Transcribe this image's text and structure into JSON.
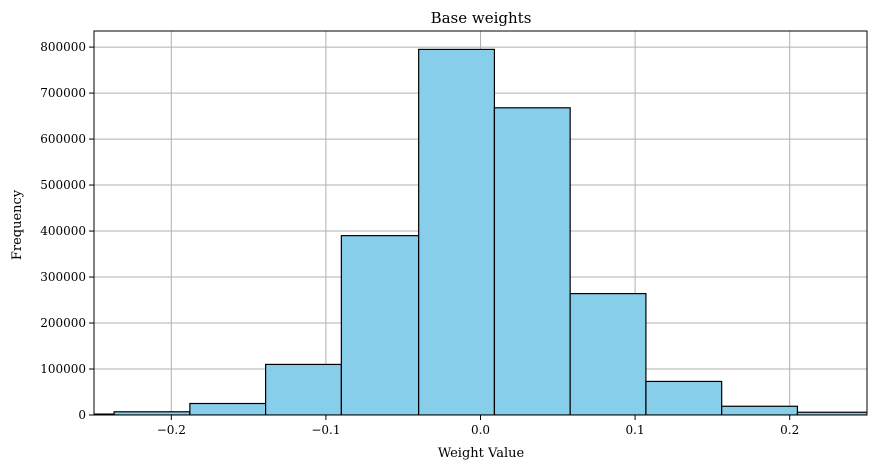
{
  "chart_data": {
    "type": "histogram",
    "title": "Base weights",
    "xlabel": "Weight Value",
    "ylabel": "Frequency",
    "xlim": [
      -0.25,
      0.25
    ],
    "ylim": [
      0,
      835000
    ],
    "grid": true,
    "x_ticks": [
      {
        "value": -0.2,
        "label": "−0.2"
      },
      {
        "value": -0.1,
        "label": "−0.1"
      },
      {
        "value": 0.0,
        "label": "0.0"
      },
      {
        "value": 0.1,
        "label": "0.1"
      },
      {
        "value": 0.2,
        "label": "0.2"
      }
    ],
    "y_ticks": [
      {
        "value": 0,
        "label": "0"
      },
      {
        "value": 100000,
        "label": "100000"
      },
      {
        "value": 200000,
        "label": "200000"
      },
      {
        "value": 300000,
        "label": "300000"
      },
      {
        "value": 400000,
        "label": "400000"
      },
      {
        "value": 500000,
        "label": "500000"
      },
      {
        "value": 600000,
        "label": "600000"
      },
      {
        "value": 700000,
        "label": "700000"
      },
      {
        "value": 800000,
        "label": "800000"
      }
    ],
    "bars": [
      {
        "x0": -0.286,
        "x1": -0.237,
        "value": 2000
      },
      {
        "x0": -0.237,
        "x1": -0.188,
        "value": 7000
      },
      {
        "x0": -0.188,
        "x1": -0.139,
        "value": 25000
      },
      {
        "x0": -0.139,
        "x1": -0.09,
        "value": 110000
      },
      {
        "x0": -0.09,
        "x1": -0.04,
        "value": 390000
      },
      {
        "x0": -0.04,
        "x1": 0.009,
        "value": 795000
      },
      {
        "x0": 0.009,
        "x1": 0.058,
        "value": 668000
      },
      {
        "x0": 0.058,
        "x1": 0.107,
        "value": 264000
      },
      {
        "x0": 0.107,
        "x1": 0.156,
        "value": 73000
      },
      {
        "x0": 0.156,
        "x1": 0.205,
        "value": 19000
      },
      {
        "x0": 0.205,
        "x1": 0.254,
        "value": 6000
      }
    ],
    "colors": {
      "bar_fill": "#87ceeb",
      "bar_edge": "#000000",
      "grid": "#b0b0b0"
    }
  }
}
